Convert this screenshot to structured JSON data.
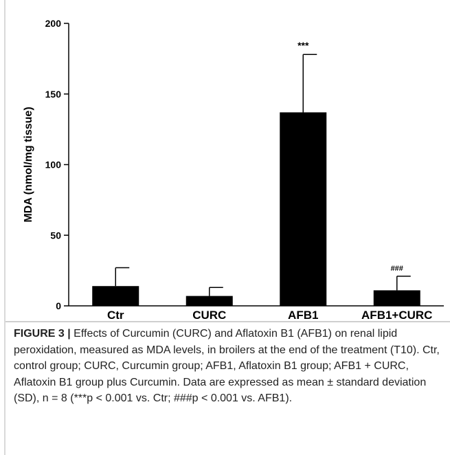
{
  "chart_data": {
    "type": "bar",
    "categories": [
      "Ctr",
      "CURC",
      "AFB1",
      "AFB1+CURC"
    ],
    "values": [
      14,
      7,
      137,
      11
    ],
    "errors": [
      13,
      6,
      41,
      10
    ],
    "annotations": [
      "",
      "",
      "***",
      "###"
    ],
    "ylabel": "MDA (nmol/mg tissue)",
    "xlabel": "",
    "ylim": [
      0,
      200
    ],
    "yticks": [
      0,
      50,
      100,
      150,
      200
    ],
    "bar_color": "#000000",
    "grid": false
  },
  "caption": {
    "label": "FIGURE 3 |",
    "text": " Effects of Curcumin (CURC) and Aflatoxin B1 (AFB1) on renal lipid peroxidation, measured as MDA levels, in broilers at the end of the treatment (T10). Ctr, control group; CURC, Curcumin group; AFB1, Aflatoxin B1 group; AFB1 + CURC, Aflatoxin B1 group plus Curcumin. Data are expressed as mean ± standard deviation (SD), n = 8 (***p < 0.001 vs. Ctr; ###p < 0.001 vs. AFB1)."
  }
}
